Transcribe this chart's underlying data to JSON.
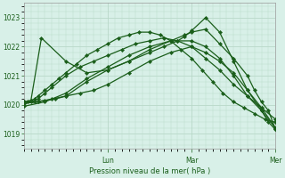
{
  "background_color": "#d8f0e8",
  "plot_bg_color": "#d8f0e8",
  "grid_color": "#b8d8c8",
  "line_color": "#1a5e1a",
  "marker_color": "#1a5e1a",
  "xlabel_text": "Pression niveau de la mer( hPa )",
  "xlabel_ticks": [
    "Lun",
    "Mar",
    "Mer"
  ],
  "ylim": [
    1018.5,
    1023.5
  ],
  "yticks": [
    1019,
    1020,
    1021,
    1022,
    1023
  ],
  "xlim": [
    0,
    72
  ],
  "lun_x": 24,
  "mar_x": 48,
  "mer_x": 72,
  "series": [
    {
      "x": [
        0,
        1,
        2,
        3,
        4,
        6,
        8,
        10,
        12,
        15,
        18,
        21,
        24,
        27,
        30,
        33,
        36,
        39,
        42,
        45,
        48,
        51,
        54,
        57,
        60,
        63,
        66,
        69,
        72
      ],
      "y": [
        1020.1,
        1020.1,
        1020.15,
        1020.2,
        1020.3,
        1020.5,
        1020.7,
        1020.9,
        1021.1,
        1021.4,
        1021.7,
        1021.9,
        1022.1,
        1022.3,
        1022.4,
        1022.5,
        1022.5,
        1022.4,
        1022.2,
        1021.9,
        1021.6,
        1021.2,
        1020.8,
        1020.4,
        1020.1,
        1019.9,
        1019.7,
        1019.5,
        1019.4
      ]
    },
    {
      "x": [
        0,
        2,
        4,
        6,
        8,
        12,
        16,
        20,
        24,
        28,
        32,
        36,
        40,
        44,
        48,
        52,
        56,
        60,
        64,
        68,
        72
      ],
      "y": [
        1020.05,
        1020.1,
        1020.2,
        1020.4,
        1020.6,
        1021.0,
        1021.3,
        1021.5,
        1021.7,
        1021.9,
        1022.1,
        1022.2,
        1022.3,
        1022.2,
        1022.0,
        1021.6,
        1021.2,
        1020.7,
        1020.3,
        1019.9,
        1019.5
      ]
    },
    {
      "x": [
        0,
        3,
        6,
        9,
        12,
        18,
        24,
        30,
        36,
        40,
        44,
        46,
        48,
        52,
        56,
        60,
        64,
        68,
        72
      ],
      "y": [
        1020.05,
        1020.1,
        1020.15,
        1020.2,
        1020.3,
        1020.8,
        1021.2,
        1021.5,
        1021.8,
        1022.0,
        1022.2,
        1022.35,
        1022.55,
        1023.0,
        1022.5,
        1021.5,
        1020.5,
        1019.8,
        1019.2
      ]
    },
    {
      "x": [
        0,
        2,
        5,
        12,
        18,
        24,
        30,
        36,
        42,
        46,
        48,
        52,
        56,
        60,
        64,
        66,
        68,
        70,
        72
      ],
      "y": [
        1020.1,
        1020.15,
        1022.3,
        1021.5,
        1021.1,
        1021.2,
        1021.5,
        1021.9,
        1022.2,
        1022.4,
        1022.5,
        1022.6,
        1022.1,
        1021.6,
        1021.0,
        1020.5,
        1020.1,
        1019.8,
        1019.15
      ]
    },
    {
      "x": [
        0,
        6,
        12,
        18,
        24,
        30,
        36,
        42,
        48,
        52,
        56,
        60,
        64,
        68,
        70,
        72
      ],
      "y": [
        1019.95,
        1020.1,
        1020.4,
        1020.9,
        1021.3,
        1021.7,
        1022.0,
        1022.2,
        1022.2,
        1022.0,
        1021.6,
        1021.0,
        1020.3,
        1019.8,
        1019.4,
        1019.15
      ]
    },
    {
      "x": [
        0,
        4,
        8,
        12,
        16,
        20,
        24,
        30,
        36,
        42,
        48,
        52,
        56,
        60,
        64,
        68,
        72
      ],
      "y": [
        1020.05,
        1020.1,
        1020.2,
        1020.3,
        1020.4,
        1020.5,
        1020.7,
        1021.1,
        1021.5,
        1021.8,
        1022.0,
        1021.8,
        1021.5,
        1021.1,
        1020.5,
        1019.9,
        1019.2
      ]
    }
  ]
}
